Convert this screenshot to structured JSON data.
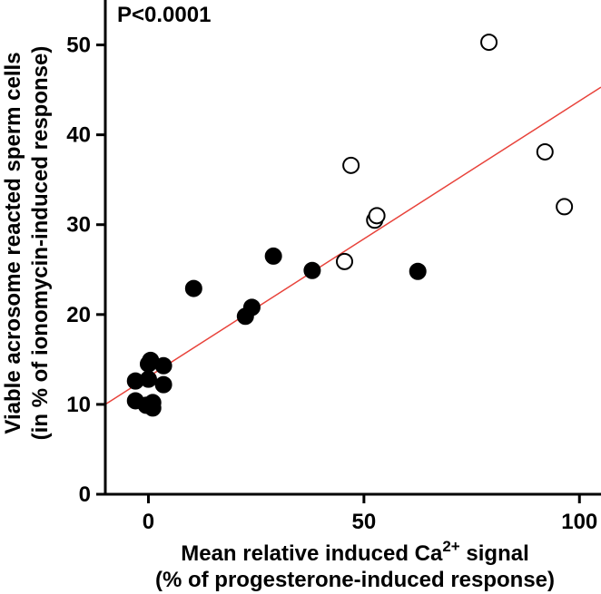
{
  "chart_data": {
    "type": "scatter",
    "title": "",
    "annotation": "P<0.0001",
    "xlabel_line1_prefix": "Mean relative induced Ca",
    "xlabel_line1_superscript": "2+",
    "xlabel_line1_suffix": " signal",
    "xlabel_line2": "(% of progesterone-induced response)",
    "ylabel_line1": "Viable acrosome reacted sperm cells",
    "ylabel_line2": "(in % of ionomycin-induced response)",
    "xlim": [
      -10,
      105
    ],
    "ylim": [
      0,
      55
    ],
    "xticks": [
      0,
      50,
      100
    ],
    "yticks": [
      0,
      10,
      20,
      30,
      40,
      50
    ],
    "xtick_labels": [
      "0",
      "50",
      "100"
    ],
    "ytick_labels": [
      "0",
      "10",
      "20",
      "30",
      "40",
      "50"
    ],
    "fit_line": {
      "x": [
        -10,
        105
      ],
      "y": [
        10.0,
        45.3
      ],
      "color": "#e8423a"
    },
    "series": [
      {
        "name": "filled",
        "marker": "filled-circle",
        "x": [
          -3,
          -3,
          0,
          0.5,
          3.5,
          3.5,
          0,
          -0.5,
          1,
          1,
          10.5,
          22.5,
          24,
          29,
          38,
          62.5
        ],
        "y": [
          12.6,
          10.4,
          14.5,
          14.9,
          14.3,
          12.2,
          12.8,
          9.9,
          10.2,
          9.6,
          22.9,
          19.8,
          20.8,
          26.5,
          24.9,
          24.8
        ]
      },
      {
        "name": "open",
        "marker": "open-circle",
        "x": [
          45.5,
          47,
          52.5,
          53,
          79,
          92,
          96.5
        ],
        "y": [
          25.9,
          36.6,
          30.5,
          31.0,
          50.3,
          38.1,
          32.0
        ]
      }
    ]
  }
}
